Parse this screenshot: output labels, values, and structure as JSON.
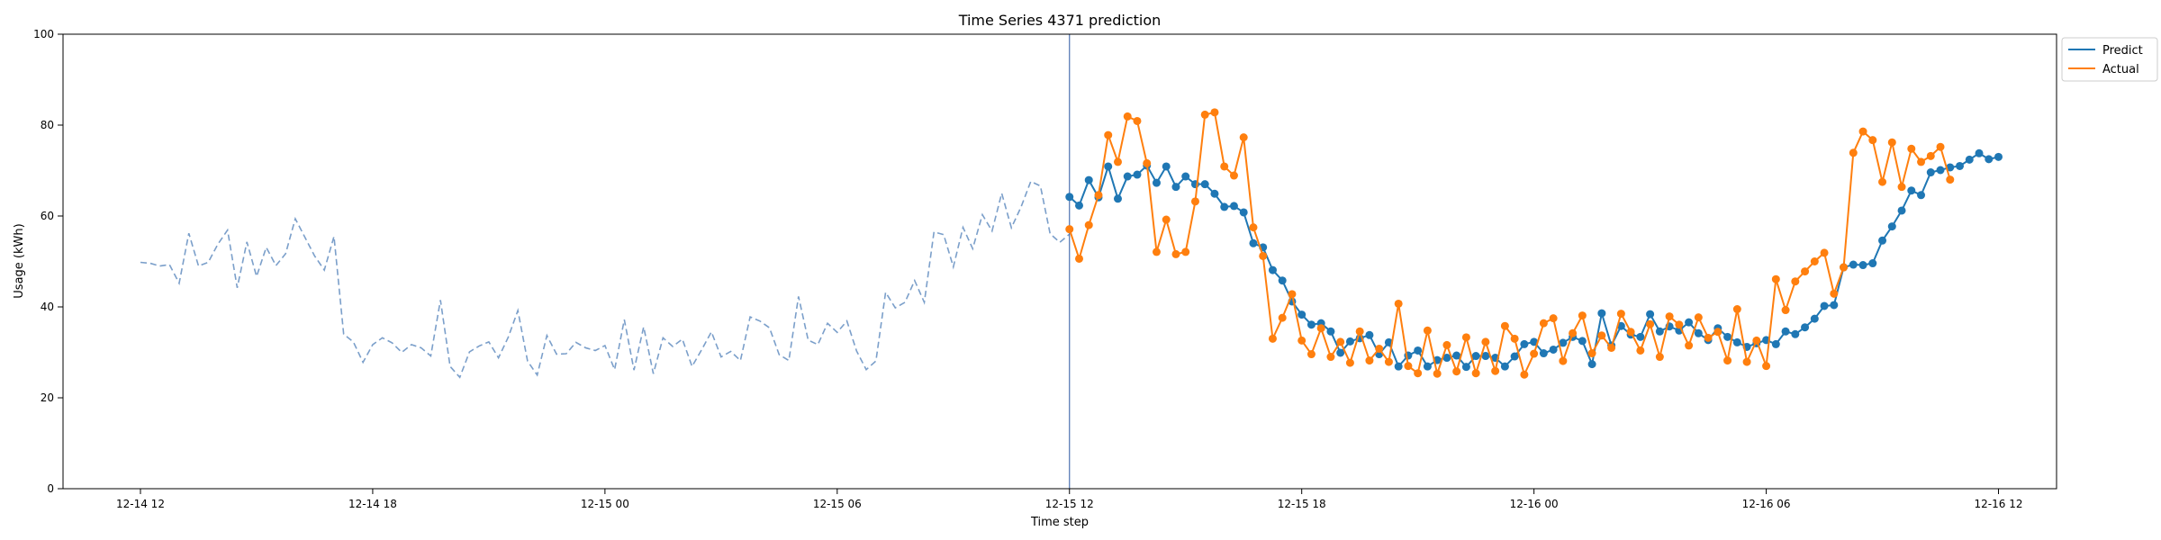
{
  "chart_data": {
    "type": "line",
    "title": "Time Series 4371 prediction",
    "xlabel": "Time step",
    "ylabel": "Usage (kWh)",
    "x_unit": "15-minute steps",
    "x_range": [
      "2023-12-14 10:50",
      "2023-12-16 13:05"
    ],
    "xlim": [
      -8,
      198
    ],
    "ylim": [
      0,
      100
    ],
    "y_ticks": [
      0,
      20,
      40,
      60,
      80,
      100
    ],
    "x_ticks": [
      "12-14 12",
      "12-14 18",
      "12-15 00",
      "12-15 06",
      "12-15 12",
      "12-15 18",
      "12-16 00",
      "12-16 06",
      "12-16 12"
    ],
    "grid": false,
    "legend_position": "upper-right-outside",
    "prediction_start": "12-15 12",
    "colors": {
      "history": "#7b9fca",
      "predict": "#1f77b4",
      "actual": "#ff7f0e",
      "divider": "#4c72b0"
    },
    "history": {
      "start": "12-14 12:00",
      "values": [
        49.8,
        49.6,
        49.0,
        49.3,
        45.2,
        56.2,
        49.0,
        49.8,
        53.8,
        56.9,
        44.2,
        54.3,
        46.7,
        53.1,
        49.1,
        51.7,
        59.4,
        55.3,
        51.2,
        48.1,
        55.5,
        34.0,
        32.3,
        27.8,
        31.7,
        33.2,
        32.1,
        30.0,
        31.7,
        31.0,
        29.2,
        41.5,
        26.9,
        24.5,
        30.1,
        31.4,
        32.3,
        28.8,
        33.3,
        39.2,
        28.1,
        25.0,
        33.7,
        29.6,
        29.7,
        32.2,
        31.0,
        30.4,
        31.5,
        26.2,
        37.2,
        26.1,
        35.6,
        25.3,
        33.2,
        31.3,
        32.9,
        26.9,
        30.6,
        34.5,
        29.0,
        30.2,
        28.2,
        37.8,
        36.9,
        35.4,
        29.5,
        28.2,
        42.3,
        32.7,
        31.7,
        36.4,
        34.4,
        36.9,
        30.3,
        26.2,
        28.1,
        43.2,
        39.8,
        41.0,
        45.8,
        41.0,
        56.5,
        55.9,
        48.8,
        57.5,
        52.8,
        60.3,
        56.7,
        65.0,
        57.4,
        62.0,
        67.6,
        66.6,
        56.1,
        54.2,
        56.0
      ]
    },
    "series": [
      {
        "name": "Predict",
        "start": "12-15 12:00",
        "values": [
          64.2,
          62.3,
          67.9,
          64.1,
          70.9,
          63.8,
          68.7,
          69.1,
          71.1,
          67.3,
          70.9,
          66.4,
          68.7,
          67.0,
          67.0,
          64.9,
          62.0,
          62.2,
          60.8,
          54.0,
          53.1,
          48.1,
          45.8,
          41.2,
          38.3,
          36.1,
          36.4,
          34.6,
          29.9,
          32.4,
          33.1,
          33.8,
          29.6,
          32.2,
          26.9,
          29.3,
          30.4,
          26.9,
          28.3,
          28.8,
          29.3,
          26.8,
          29.2,
          29.2,
          28.8,
          26.9,
          29.1,
          31.8,
          32.3,
          29.8,
          30.6,
          32.1,
          33.4,
          32.5,
          27.4,
          38.6,
          31.5,
          35.8,
          33.9,
          33.4,
          38.4,
          34.6,
          35.7,
          34.8,
          36.6,
          34.2,
          32.7,
          35.3,
          33.4,
          32.2,
          31.2,
          32.0,
          32.7,
          31.8,
          34.6,
          34.0,
          35.5,
          37.4,
          40.2,
          40.4,
          48.7,
          49.3,
          49.2,
          49.6,
          54.6,
          57.7,
          61.2,
          65.6,
          64.6,
          69.6,
          70.1,
          70.7,
          71.0,
          72.4,
          73.8,
          72.5,
          73.0
        ]
      },
      {
        "name": "Actual",
        "start": "12-15 12:00",
        "values": [
          57.1,
          50.6,
          58.0,
          64.6,
          77.8,
          71.9,
          81.9,
          80.9,
          71.6,
          52.1,
          59.2,
          51.6,
          52.1,
          63.2,
          82.3,
          82.8,
          70.9,
          68.9,
          77.3,
          57.5,
          51.2,
          33.0,
          37.6,
          42.8,
          32.6,
          29.6,
          35.3,
          29.0,
          32.3,
          27.7,
          34.6,
          28.2,
          30.8,
          27.9,
          40.7,
          27.0,
          25.4,
          34.8,
          25.3,
          31.6,
          25.8,
          33.3,
          25.4,
          32.3,
          25.9,
          35.8,
          33.0,
          25.1,
          29.7,
          36.4,
          37.5,
          28.1,
          34.2,
          38.1,
          29.8,
          33.7,
          31.0,
          38.5,
          34.5,
          30.4,
          36.2,
          29.0,
          37.9,
          36.1,
          31.5,
          37.7,
          33.2,
          34.5,
          28.2,
          39.5,
          27.9,
          32.6,
          27.0,
          46.1,
          39.3,
          45.6,
          47.8,
          50.0,
          51.9,
          42.9,
          48.7,
          73.9,
          78.6,
          76.7,
          67.5,
          76.2,
          66.4,
          74.8,
          71.9,
          73.2,
          75.2,
          68.0
        ]
      }
    ],
    "legend": [
      {
        "label": "Predict",
        "color": "#1f77b4"
      },
      {
        "label": "Actual",
        "color": "#ff7f0e"
      }
    ]
  }
}
